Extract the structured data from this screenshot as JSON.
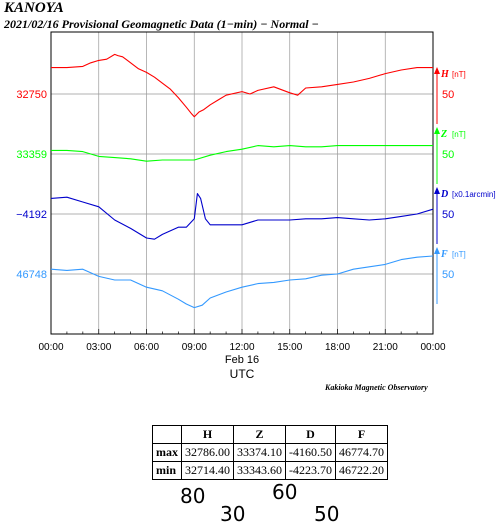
{
  "header": {
    "station": "KANOYA",
    "subtitle": "2021/02/16  Provisional Geomagnetic Data (1−min)  − Normal −"
  },
  "chart_data": {
    "type": "line",
    "xlabel": "UTC",
    "x_ticks": [
      "00:00",
      "03:00",
      "06:00",
      "09:00",
      "12:00",
      "15:00",
      "18:00",
      "21:00",
      "00:00"
    ],
    "date_label": "Feb 16",
    "grid": true,
    "series": [
      {
        "name": "H",
        "unit": "[nT]",
        "color": "#ff0000",
        "base": "32750",
        "scale_label": "50",
        "x_hours": [
          0,
          1,
          2,
          2.5,
          3,
          3.5,
          4,
          4.2,
          4.5,
          5,
          5.5,
          6,
          6.5,
          7,
          7.5,
          8,
          8.5,
          8.8,
          9,
          9.3,
          9.6,
          10,
          10.5,
          11,
          12,
          12.5,
          13,
          14,
          15,
          15.5,
          16,
          17,
          18,
          19,
          20,
          21,
          22,
          23,
          24
        ],
        "values": [
          32772,
          32772,
          32773,
          32776,
          32778,
          32779,
          32783,
          32782,
          32781,
          32776,
          32771,
          32768,
          32764,
          32759,
          32754,
          32747,
          32739,
          32734,
          32731,
          32735,
          32737,
          32741,
          32745,
          32749,
          32752,
          32750,
          32753,
          32756,
          32751,
          32749,
          32755,
          32756,
          32758,
          32760,
          32763,
          32767,
          32770,
          32772,
          32772
        ]
      },
      {
        "name": "Z",
        "unit": "[nT]",
        "color": "#00ff00",
        "base": "33359",
        "scale_label": "50",
        "x_hours": [
          0,
          1,
          2,
          3,
          4,
          5,
          6,
          7,
          8,
          9,
          10,
          11,
          12,
          13,
          14,
          15,
          16,
          17,
          18,
          19,
          20,
          21,
          22,
          23,
          24
        ],
        "values": [
          33362,
          33362,
          33361,
          33357,
          33356,
          33355,
          33353,
          33354,
          33354,
          33354,
          33358,
          33361,
          33363,
          33366,
          33365,
          33366,
          33365,
          33365,
          33366,
          33366,
          33366,
          33366,
          33366,
          33366,
          33366
        ]
      },
      {
        "name": "D",
        "unit": "[x0.1arcmin]",
        "color": "#0000cc",
        "base": "−4192",
        "scale_label": "50",
        "x_hours": [
          0,
          1,
          2,
          3,
          4,
          5,
          6,
          6.5,
          7,
          8,
          8.5,
          9,
          9.2,
          9.4,
          9.7,
          10,
          11,
          12,
          13,
          14,
          15,
          16,
          17,
          18,
          19,
          20,
          21,
          22,
          23,
          24
        ],
        "values": [
          -4179,
          -4178,
          -4182,
          -4186,
          -4197,
          -4204,
          -4212,
          -4213,
          -4209,
          -4203,
          -4203,
          -4196,
          -4175,
          -4179,
          -4196,
          -4201,
          -4201,
          -4201,
          -4197,
          -4197,
          -4197,
          -4196,
          -4196,
          -4195,
          -4196,
          -4197,
          -4196,
          -4194,
          -4192,
          -4188
        ]
      },
      {
        "name": "F",
        "unit": "[nT]",
        "color": "#3399ff",
        "base": "46748",
        "scale_label": "50",
        "x_hours": [
          0,
          1,
          2,
          3,
          4,
          5,
          6,
          7,
          8,
          8.5,
          9,
          9.5,
          10,
          11,
          12,
          13,
          14,
          15,
          16,
          17,
          18,
          19,
          20,
          21,
          22,
          23,
          24
        ],
        "values": [
          46752,
          46751,
          46752,
          46746,
          46743,
          46743,
          46737,
          46734,
          46727,
          46723,
          46720,
          46722,
          46728,
          46733,
          46737,
          46740,
          46741,
          46743,
          46744,
          46747,
          46748,
          46752,
          46754,
          46756,
          46760,
          46762,
          46763
        ]
      }
    ],
    "stats_table": {
      "columns": [
        "",
        "H",
        "Z",
        "D",
        "F"
      ],
      "rows": [
        {
          "label": "max",
          "values": [
            "32786.00",
            "33374.10",
            "-4160.50",
            "46774.70"
          ]
        },
        {
          "label": "min",
          "values": [
            "32714.40",
            "33343.60",
            "-4223.70",
            "46722.20"
          ]
        }
      ]
    },
    "scale_notes": [
      {
        "text": "80",
        "color": "#ff6666"
      },
      {
        "text": "60",
        "color": "#6699ff"
      },
      {
        "text": "30",
        "color": "#99ff66"
      },
      {
        "text": "50",
        "color": "#99ccff"
      }
    ]
  },
  "footer": {
    "observatory": "Kakioka Magnetic Observatory"
  }
}
